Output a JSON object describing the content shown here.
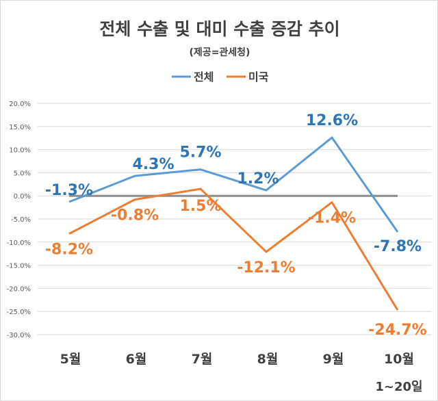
{
  "chart_data": {
    "type": "line",
    "title": "전체 수출 및 대미 수출 증감 추이",
    "subtitle": "(제공=관세청)",
    "categories": [
      "5월",
      "6월",
      "7월",
      "8월",
      "9월",
      "10월"
    ],
    "category_note": "1~20일",
    "series": [
      {
        "name": "전체",
        "color": "#5B9BD5",
        "label_color": "#2E75B6",
        "values": [
          -1.3,
          4.3,
          5.7,
          1.2,
          12.6,
          -7.8
        ],
        "labels": [
          "-1.3%",
          "4.3%",
          "5.7%",
          "1.2%",
          "12.6%",
          "-7.8%"
        ]
      },
      {
        "name": "미국",
        "color": "#ED7D31",
        "label_color": "#ED7D31",
        "values": [
          -8.2,
          -0.8,
          1.5,
          -12.1,
          -1.4,
          -24.7
        ],
        "labels": [
          "-8.2%",
          "-0.8%",
          "1.5%",
          "-12.1%",
          "-1.4%",
          "-24.7%"
        ]
      }
    ],
    "yticks": [
      "20.0%",
      "15.0%",
      "10.0%",
      "5.0%",
      "0.0%",
      "-5.0%",
      "-10.0%",
      "-15.0%",
      "-20.0%",
      "-25.0%",
      "-30.0%"
    ],
    "ylim": [
      -30,
      20
    ],
    "grid": true,
    "legend": "top-center"
  }
}
